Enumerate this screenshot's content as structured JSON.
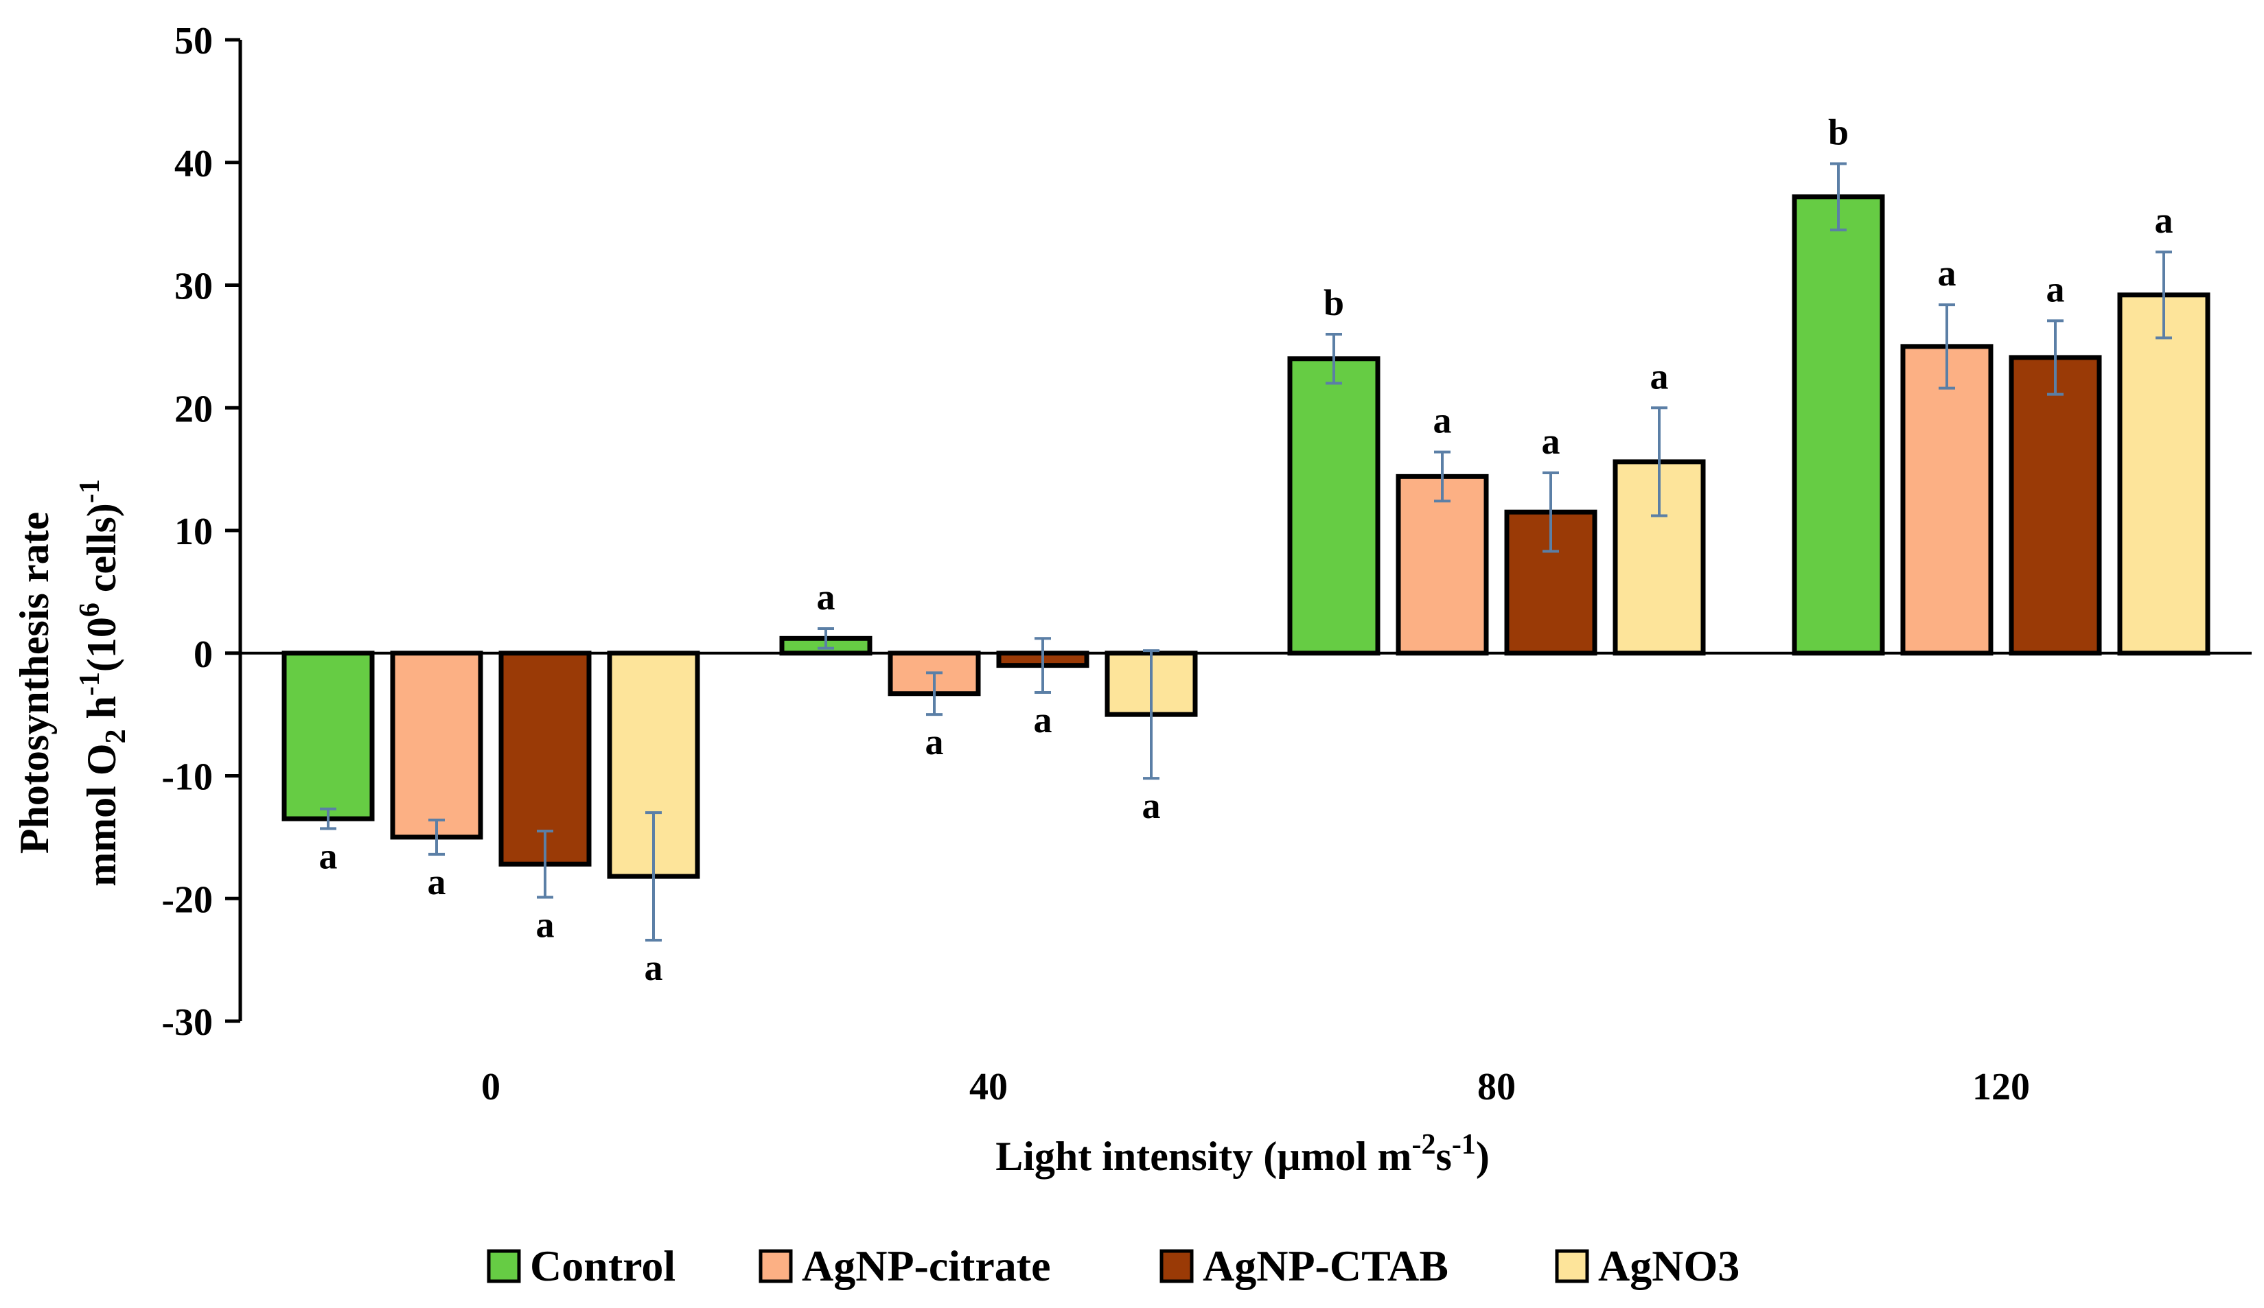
{
  "chart_data": {
    "type": "bar",
    "title": "",
    "xlabel": "Light intensity (µmol m-2s-1)",
    "xlabel_parts": {
      "main": "Light intensity (µmol m",
      "sup1": "-2",
      "mid": "s",
      "sup2": "-1",
      "end": ")"
    },
    "ylabel_line1": "Photosynthesis rate",
    "ylabel_line2_parts": {
      "a": "mmol O",
      "sub": "2",
      "b": " h",
      "sup1": "-1",
      "c": "(10",
      "sup2": "6",
      "d": " cells)",
      "sup3": "-1"
    },
    "ylim": [
      -30,
      50
    ],
    "yticks": [
      50,
      40,
      30,
      20,
      10,
      0,
      -10,
      -20,
      -30
    ],
    "categories": [
      "0",
      "40",
      "80",
      "120"
    ],
    "series": [
      {
        "name": "Control",
        "color": "#66cc44",
        "values": [
          -13.5,
          1.2,
          24.0,
          37.2
        ],
        "errors": [
          0.8,
          0.8,
          2.0,
          2.7
        ],
        "letters": [
          "a",
          "a",
          "b",
          "b"
        ]
      },
      {
        "name": "AgNP-citrate",
        "color": "#fcb084",
        "values": [
          -15.0,
          -3.3,
          14.4,
          25.0
        ],
        "errors": [
          1.4,
          1.7,
          2.0,
          3.4
        ],
        "letters": [
          "a",
          "a",
          "a",
          "a"
        ]
      },
      {
        "name": "AgNP-CTAB",
        "color": "#9a3a06",
        "values": [
          -17.2,
          -1.0,
          11.5,
          24.1
        ],
        "errors": [
          2.7,
          2.2,
          3.2,
          3.0
        ],
        "letters": [
          "a",
          "a",
          "a",
          "a"
        ]
      },
      {
        "name": "AgNO3",
        "color": "#fde49a",
        "values": [
          -18.2,
          -5.0,
          15.6,
          29.2
        ],
        "errors": [
          5.2,
          5.2,
          4.4,
          3.5
        ],
        "letters": [
          "a",
          "a",
          "a",
          "a"
        ]
      }
    ]
  }
}
